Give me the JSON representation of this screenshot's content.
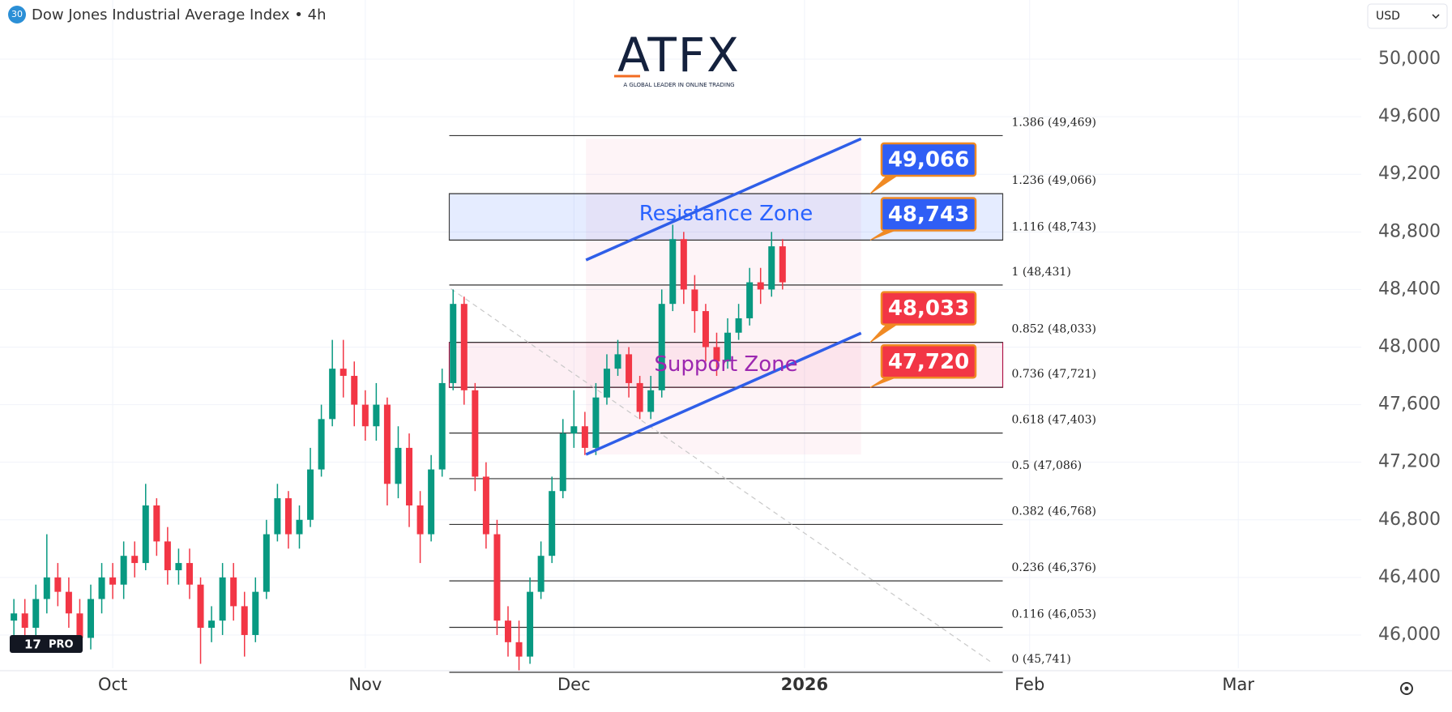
{
  "chart_data": {
    "type": "candlestick",
    "title": "Dow Jones Industrial Average Index • 4h",
    "symbol_badge": "30",
    "currency": "USD",
    "watermark": "ATFX",
    "watermark_tagline": "A GLOBAL LEADER IN ONLINE TRADING",
    "tv_badge": "PRO",
    "up_color": "#089981",
    "down_color": "#f23645",
    "x": [
      0,
      2,
      4,
      6,
      8,
      10,
      12,
      14,
      16,
      18,
      20,
      22,
      24,
      26,
      28,
      30,
      32,
      34,
      36,
      38,
      40,
      42,
      44,
      46,
      48,
      50,
      52,
      54,
      56,
      58,
      60,
      62,
      64,
      66,
      68,
      70,
      72,
      74,
      76,
      78,
      80,
      82,
      84,
      86,
      88,
      90,
      92,
      94,
      96,
      98,
      100,
      102,
      104,
      106,
      108,
      110,
      112,
      114,
      116,
      118,
      120,
      122,
      124,
      126,
      128,
      130,
      132,
      134,
      136,
      138,
      140
    ],
    "open": [
      46100,
      46150,
      46050,
      46250,
      46400,
      46300,
      46150,
      45980,
      46250,
      46400,
      46350,
      46550,
      46500,
      46900,
      46650,
      46450,
      46500,
      46350,
      46050,
      46100,
      46400,
      46200,
      46000,
      46300,
      46700,
      46950,
      46700,
      46800,
      47150,
      47500,
      47850,
      47800,
      47600,
      47450,
      47600,
      47050,
      47300,
      46900,
      46700,
      47150,
      47750,
      48300,
      47700,
      47100,
      46700,
      46100,
      45950,
      45850,
      46300,
      46550,
      47000,
      47400,
      47450,
      47300,
      47650,
      47850,
      47950,
      47750,
      47550,
      47700,
      48300,
      48750,
      48400,
      48250,
      48000,
      47900,
      48100,
      48200,
      48450,
      48400,
      48700
    ],
    "high": [
      46250,
      46250,
      46350,
      46700,
      46500,
      46400,
      46250,
      46350,
      46500,
      46500,
      46650,
      46650,
      47050,
      46950,
      46750,
      46600,
      46600,
      46400,
      46200,
      46500,
      46500,
      46300,
      46400,
      46800,
      47050,
      47000,
      46900,
      47300,
      47600,
      48050,
      48050,
      47900,
      47700,
      47750,
      47650,
      47450,
      47400,
      47000,
      47250,
      47850,
      48400,
      48350,
      47750,
      47200,
      46800,
      46200,
      46100,
      46400,
      46650,
      47100,
      47500,
      47700,
      47550,
      47750,
      47950,
      48050,
      48000,
      47800,
      47800,
      48400,
      48850,
      48800,
      48500,
      48300,
      48100,
      48200,
      48300,
      48550,
      48550,
      48800,
      48750
    ],
    "low": [
      46000,
      45950,
      45950,
      46150,
      46200,
      46050,
      45880,
      45900,
      46150,
      46250,
      46250,
      46400,
      46450,
      46550,
      46350,
      46350,
      46250,
      45800,
      45950,
      46000,
      46100,
      45850,
      45950,
      46250,
      46650,
      46600,
      46600,
      46750,
      47100,
      47450,
      47650,
      47450,
      47350,
      47350,
      46900,
      46950,
      46750,
      46500,
      46650,
      47100,
      47700,
      47600,
      47000,
      46600,
      46000,
      45850,
      45750,
      45800,
      46250,
      46500,
      46950,
      47300,
      47250,
      47250,
      47600,
      47800,
      47650,
      47500,
      47500,
      47650,
      48250,
      48300,
      48100,
      47900,
      47800,
      47850,
      48050,
      48150,
      48300,
      48350,
      48400
    ],
    "close": [
      46150,
      46050,
      46250,
      46400,
      46300,
      46150,
      45980,
      46250,
      46400,
      46350,
      46550,
      46500,
      46900,
      46650,
      46450,
      46500,
      46350,
      46050,
      46100,
      46400,
      46200,
      46000,
      46300,
      46700,
      46950,
      46700,
      46800,
      47150,
      47500,
      47850,
      47800,
      47600,
      47450,
      47600,
      47050,
      47300,
      46900,
      46700,
      47150,
      47750,
      48300,
      47700,
      47100,
      46700,
      46100,
      45950,
      45850,
      46300,
      46550,
      47000,
      47400,
      47450,
      47300,
      47650,
      47850,
      47950,
      47750,
      47550,
      47700,
      48300,
      48750,
      48400,
      48250,
      48000,
      47900,
      48100,
      48200,
      48450,
      48400,
      48700,
      48450
    ],
    "xlim": [
      -2.53,
      245.4
    ],
    "xticks": [
      {
        "value": 18,
        "label": "Oct"
      },
      {
        "value": 64,
        "label": "Nov"
      },
      {
        "value": 102,
        "label": "Dec"
      },
      {
        "value": 144,
        "label": "2026"
      },
      {
        "value": 185,
        "label": "Feb"
      },
      {
        "value": 223,
        "label": "Mar"
      }
    ],
    "ylim": [
      45769,
      50411
    ],
    "yticks": [
      {
        "value": 46000,
        "label": "46,000"
      },
      {
        "value": 46400,
        "label": "46,400"
      },
      {
        "value": 46800,
        "label": "46,800"
      },
      {
        "value": 47200,
        "label": "47,200"
      },
      {
        "value": 47600,
        "label": "47,600"
      },
      {
        "value": 48000,
        "label": "48,000"
      },
      {
        "value": 48400,
        "label": "48,400"
      },
      {
        "value": 48800,
        "label": "48,800"
      },
      {
        "value": 49200,
        "label": "49,200"
      },
      {
        "value": 49600,
        "label": "49,600"
      },
      {
        "value": 50000,
        "label": "50,000"
      }
    ],
    "grid": true,
    "fib_x": [
      79.3,
      180.1
    ],
    "fib_levels": [
      {
        "value": 49469,
        "label": "1.386 (49,469)"
      },
      {
        "value": 49066,
        "label": "1.236 (49,066)"
      },
      {
        "value": 48743,
        "label": "1.116 (48,743)"
      },
      {
        "value": 48431,
        "label": "1 (48,431)"
      },
      {
        "value": 48033,
        "label": "0.852 (48,033)"
      },
      {
        "value": 47721,
        "label": "0.736 (47,721)"
      },
      {
        "value": 47403,
        "label": "0.618 (47,403)"
      },
      {
        "value": 47086,
        "label": "0.5 (47,086)"
      },
      {
        "value": 46768,
        "label": "0.382 (46,768)"
      },
      {
        "value": 46376,
        "label": "0.236 (46,376)"
      },
      {
        "value": 46053,
        "label": "0.116 (46,053)"
      },
      {
        "value": 45741,
        "label": "0 (45,741)"
      }
    ],
    "zones": [
      {
        "name": "Resistance Zone",
        "range": [
          48743,
          49066
        ],
        "color": "#2962ff"
      },
      {
        "name": "Support Zone",
        "range": [
          47720,
          48033
        ],
        "color": "#9c27b0"
      }
    ],
    "channel": {
      "x": [
        104.2,
        154.3
      ],
      "upper": [
        48605,
        49447
      ],
      "lower": [
        47254,
        48097
      ],
      "color": "#2f5ee8"
    },
    "trend_line": {
      "x": [
        79.6,
        177.9
      ],
      "y": [
        48405,
        45814
      ]
    },
    "price_tags": [
      {
        "value": 49066,
        "label": "49,066",
        "color": "#2f5ef5"
      },
      {
        "value": 48743,
        "label": "48,743",
        "color": "#2f5ef5"
      },
      {
        "value": 48033,
        "label": "48,033",
        "color": "#f23645"
      },
      {
        "value": 47720,
        "label": "47,720",
        "color": "#f23645"
      }
    ]
  }
}
